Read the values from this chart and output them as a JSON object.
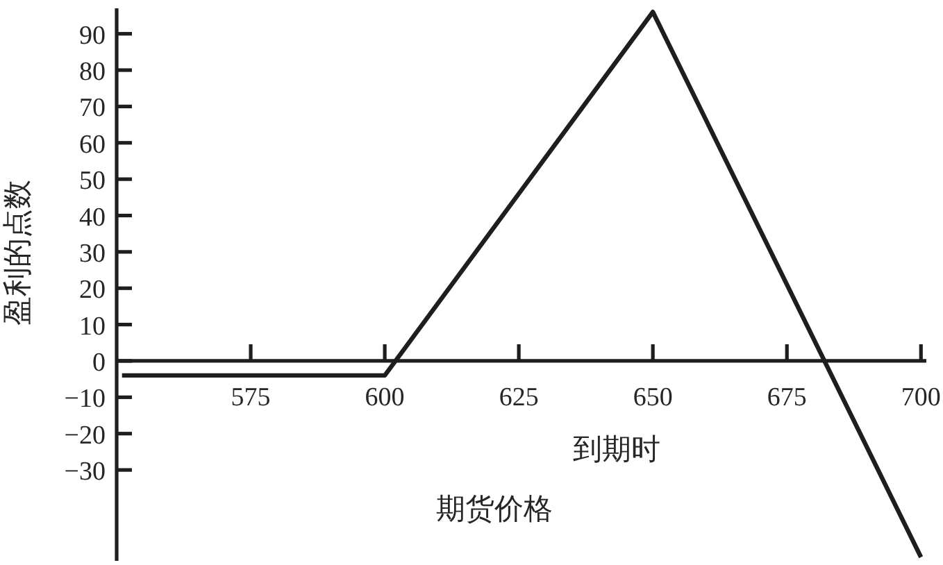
{
  "chart_data": {
    "type": "line",
    "xlabel": "到期时期货价格",
    "ylabel": "盈利的点数",
    "x": [
      551,
      600,
      650,
      700
    ],
    "series": [
      {
        "color": "#1e1e1e",
        "values": [
          -4,
          -4,
          96,
          -54
        ]
      }
    ],
    "xlim": [
      550,
      701
    ],
    "xticks": [
      575,
      600,
      625,
      650,
      675,
      700
    ],
    "ylim": [
      -55,
      97
    ],
    "yticks": [
      {
        "value": -30,
        "label": "−30"
      },
      {
        "value": -20,
        "label": "−20"
      },
      {
        "value": -10,
        "label": "−10"
      },
      0,
      10,
      20,
      30,
      40,
      50,
      60,
      70,
      80,
      90
    ],
    "marker": "none",
    "line_style": "solid"
  }
}
